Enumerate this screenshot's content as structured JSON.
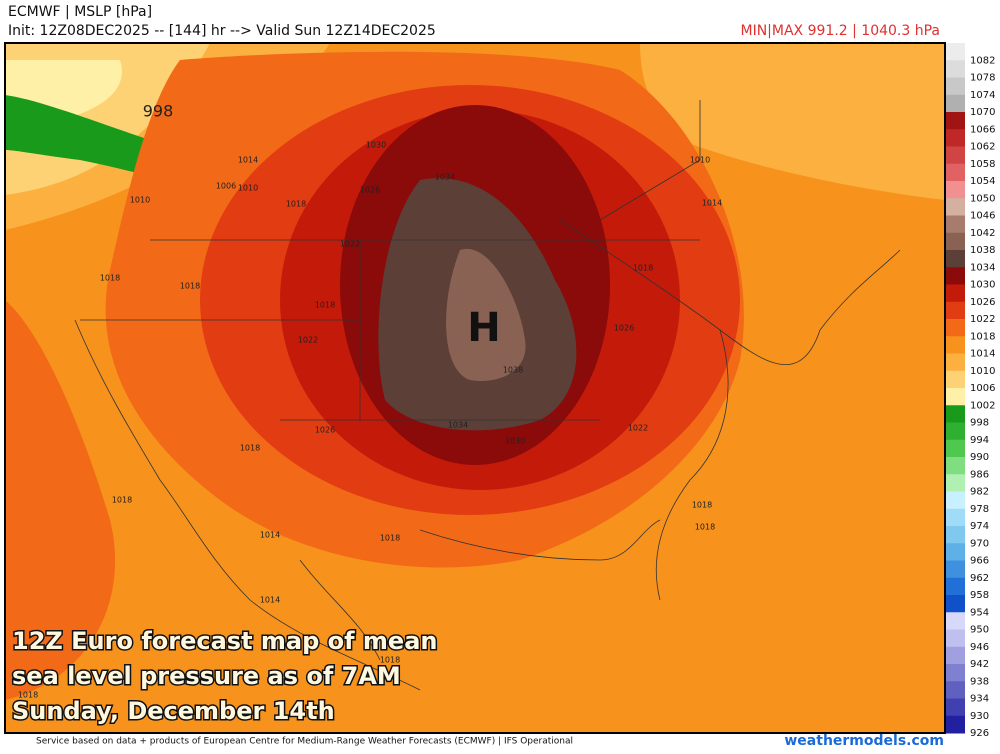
{
  "header": {
    "title": "ECMWF | MSLP [hPa]",
    "init": "Init: 12Z08DEC2025 -- [144] hr --> Valid Sun 12Z14DEC2025",
    "minmax": "MIN|MAX 991.2 | 1040.3 hPa"
  },
  "map": {
    "high": "H",
    "contour_labels": [
      "998",
      "1014",
      "1006",
      "1010",
      "1010",
      "1018",
      "1026",
      "1030",
      "1034",
      "1022",
      "1018",
      "1018",
      "1018",
      "1022",
      "1018",
      "1026",
      "1038",
      "1034",
      "1030",
      "1022",
      "1026",
      "1010",
      "1014",
      "1018",
      "1018",
      "1018",
      "1014",
      "1018",
      "1018",
      "1014",
      "1018",
      "1018"
    ]
  },
  "overlay": [
    "12Z Euro forecast map of mean",
    "sea level pressure as of 7AM",
    "Sunday, December 14th"
  ],
  "colorbar": {
    "levels": [
      1082,
      1078,
      1074,
      1070,
      1066,
      1062,
      1058,
      1054,
      1050,
      1046,
      1042,
      1038,
      1034,
      1030,
      1026,
      1022,
      1018,
      1014,
      1010,
      1006,
      1002,
      998,
      994,
      990,
      986,
      982,
      978,
      974,
      970,
      966,
      962,
      958,
      954,
      950,
      946,
      942,
      938,
      934,
      930,
      926
    ],
    "colors": [
      "#ececec",
      "#dcdcdc",
      "#c8c8c8",
      "#b0b0b0",
      "#a01414",
      "#c02828",
      "#d04444",
      "#e06262",
      "#f09090",
      "#d4b0a0",
      "#a87c6c",
      "#8a6254",
      "#5c3f37",
      "#8b0a0a",
      "#c41a0a",
      "#e23c12",
      "#f26a18",
      "#f7921c",
      "#fbb040",
      "#fdd274",
      "#fff0a8",
      "#1a9a1a",
      "#30b030",
      "#50c850",
      "#80dd80",
      "#b0f0b0",
      "#c8f0ff",
      "#a0dcf8",
      "#80c8f0",
      "#60b0e8",
      "#4090e0",
      "#2070d8",
      "#1050c8",
      "#d8d8f8",
      "#c0c0f0",
      "#a0a0e0",
      "#8080d0",
      "#6060c0",
      "#4040b0",
      "#2020a0"
    ]
  },
  "footer": {
    "credit": "Service based on data + products of European Centre for Medium-Range Weather Forecasts (ECMWF) | IFS Operational",
    "site": "weathermodels.com"
  }
}
